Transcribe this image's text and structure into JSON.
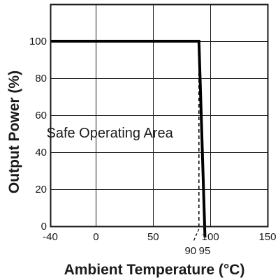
{
  "chart_data": {
    "type": "line",
    "title": "",
    "xlabel": "Ambient Temperature (°C)",
    "ylabel": "Output Power (%)",
    "xlim": [
      -40,
      150
    ],
    "ylim": [
      0,
      120
    ],
    "grid": true,
    "x_ticks": [
      -40,
      0,
      50,
      100,
      150
    ],
    "y_ticks": [
      0,
      20,
      40,
      60,
      80,
      100
    ],
    "x_tick_labels": [
      "-40",
      "0",
      "50",
      "100",
      "150"
    ],
    "y_tick_labels": [
      "0",
      "20",
      "40",
      "60",
      "80",
      "100"
    ],
    "series": [
      {
        "style": "solid",
        "x": [
          -40,
          90,
          95
        ],
        "y": [
          100,
          100,
          0
        ]
      },
      {
        "style": "dashed",
        "x": [
          90,
          90
        ],
        "y": [
          100,
          0
        ]
      }
    ],
    "annotations": [
      {
        "text": "Safe Operating Area",
        "x": 12,
        "y": 48
      },
      {
        "text": "90",
        "x": 90
      },
      {
        "text": "95",
        "x": 95
      }
    ],
    "colors": {
      "line": "#000000",
      "grid": "#1a1a1a",
      "background": "#ffffff"
    }
  }
}
